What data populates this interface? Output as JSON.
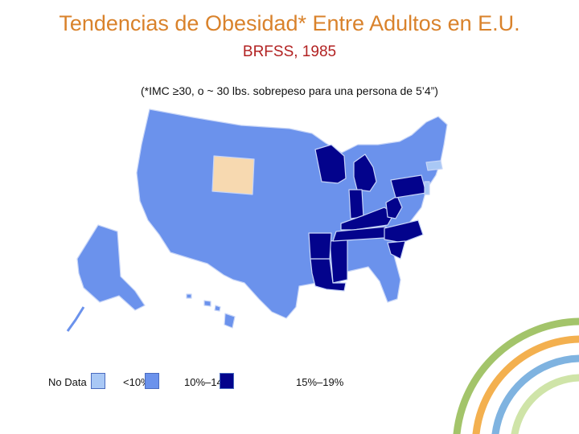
{
  "header": {
    "title": "Tendencias de Obesidad* Entre Adultos en E.U.",
    "subtitle": "BRFSS, 1985",
    "note": "(*IMC ≥30, o ~ 30 lbs. sobrepeso para una persona de 5’4”)"
  },
  "colors": {
    "no_data": "#f7d9b0",
    "under10": "#a9c8f5",
    "ten_to_14": "#6b92ec",
    "fifteen_to_19": "#03038c",
    "border": "#c7d5f7"
  },
  "legend": [
    {
      "label": "No Data",
      "color": "#f7d9b0"
    },
    {
      "label": "<10%",
      "color": "#a9c8f5"
    },
    {
      "label": "10%–14%",
      "color": "#6b92ec"
    },
    {
      "label": "15%–19%",
      "color": "#03038c"
    }
  ]
}
